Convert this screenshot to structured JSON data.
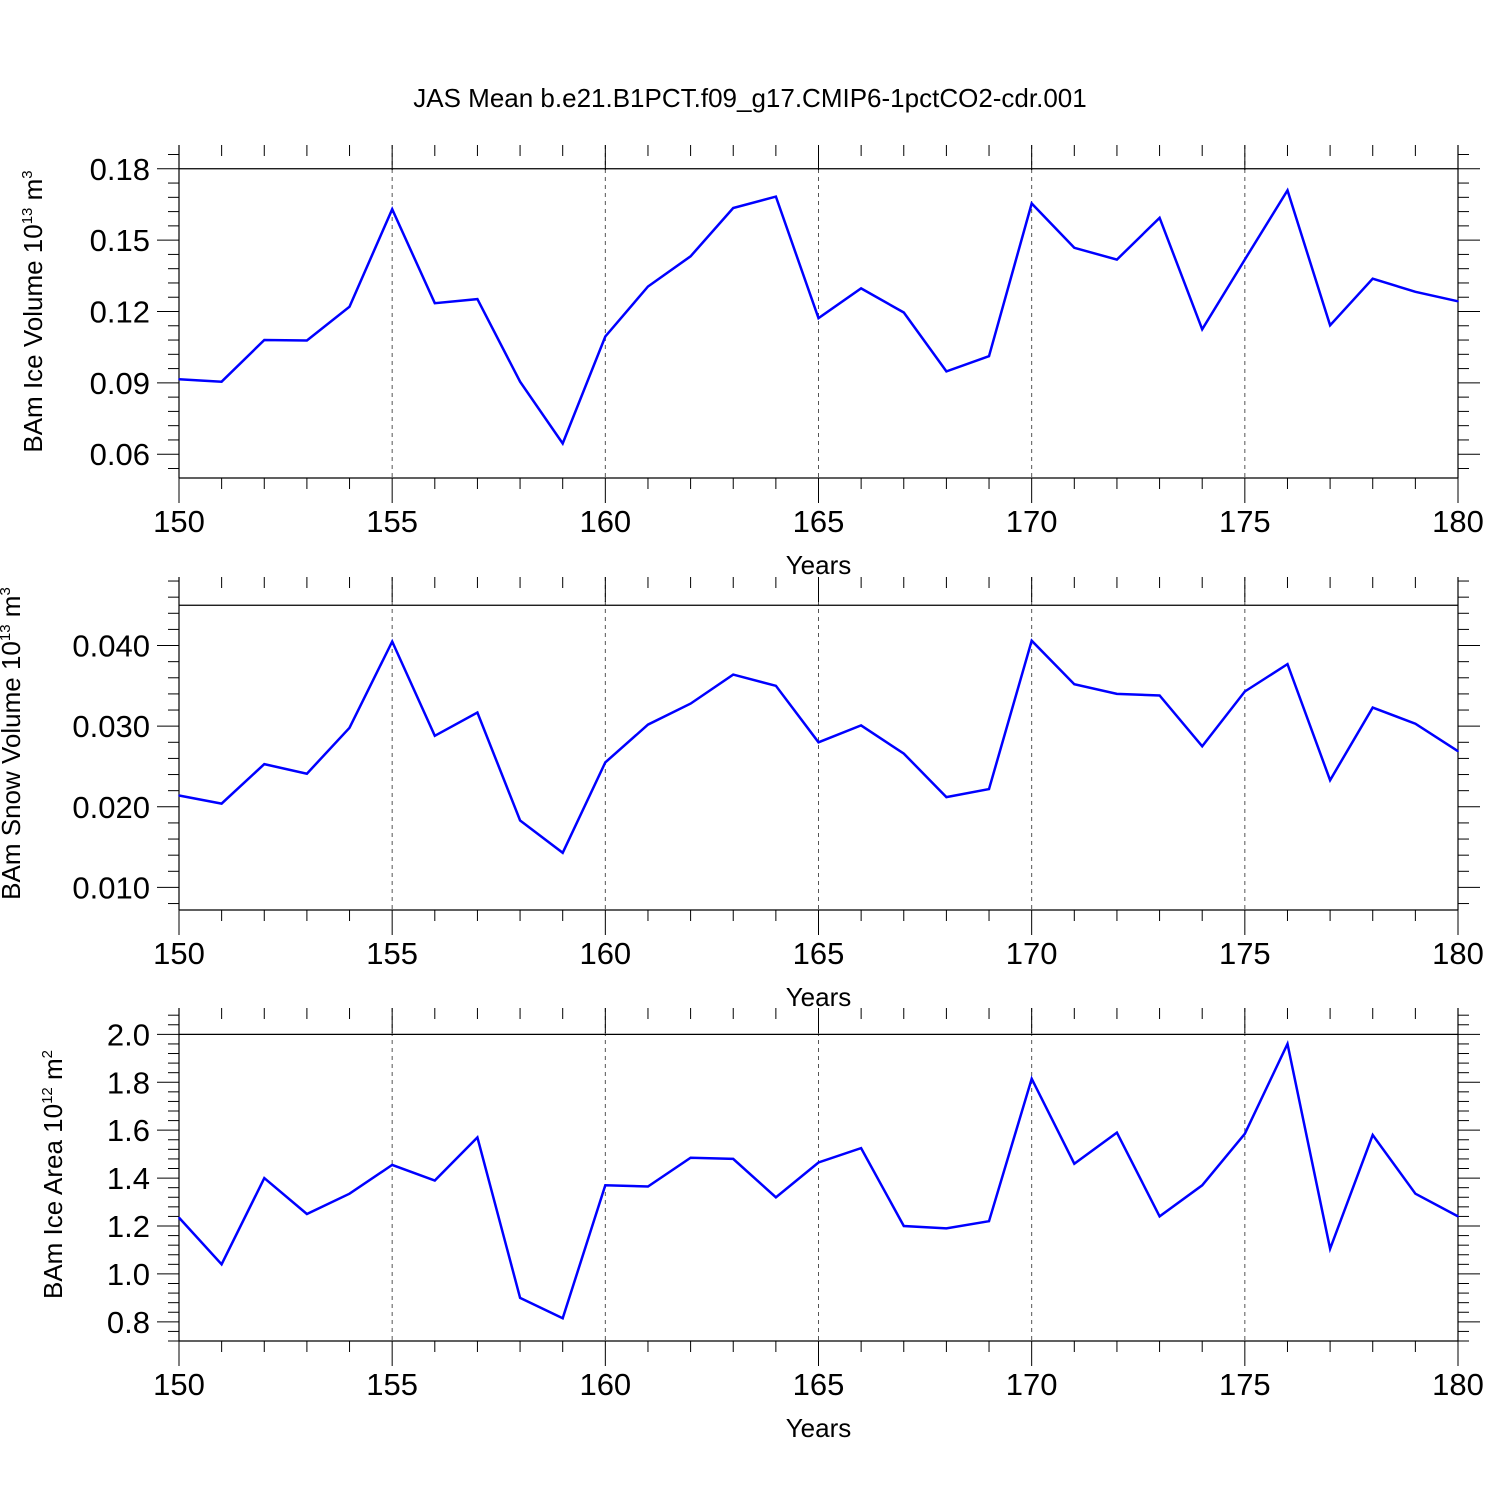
{
  "figure_title": "JAS Mean b.e21.B1PCT.f09_g17.CMIP6-1pctCO2-cdr.001",
  "line_color": "#0000ff",
  "chart_data": [
    {
      "type": "line",
      "name": "ice-volume",
      "ylabel": {
        "main": "BAm Ice Volume 10",
        "sup": "13",
        "unit": " m",
        "unit_sup": "3"
      },
      "xlabel": "Years",
      "xlim": [
        150,
        180
      ],
      "ylim": [
        0.05,
        0.19
      ],
      "xticks": [
        150,
        155,
        160,
        165,
        170,
        175,
        180
      ],
      "xtick_labels": [
        "150",
        "155",
        "160",
        "165",
        "170",
        "175",
        "180"
      ],
      "yticks": [
        0.06,
        0.09,
        0.12,
        0.15,
        0.18
      ],
      "ytick_labels": [
        "0.06",
        "0.09",
        "0.12",
        "0.15",
        "0.18"
      ],
      "ref_line": 0.18,
      "grid": "dashed vertical at major x ticks",
      "x": [
        150,
        151,
        152,
        153,
        154,
        155,
        156,
        157,
        158,
        159,
        160,
        161,
        162,
        163,
        164,
        165,
        166,
        167,
        168,
        169,
        170,
        171,
        172,
        173,
        174,
        175,
        176,
        177,
        178,
        179,
        180
      ],
      "y": [
        0.0915,
        0.0905,
        0.108,
        0.1078,
        0.122,
        0.163,
        0.1235,
        0.1252,
        0.0905,
        0.0645,
        0.1095,
        0.1305,
        0.1432,
        0.1635,
        0.1683,
        0.1172,
        0.1297,
        0.1196,
        0.0948,
        0.1012,
        0.1654,
        0.1468,
        0.1418,
        0.1594,
        0.1125,
        0.1418,
        0.1709,
        0.1142,
        0.1338,
        0.1283,
        0.1243
      ]
    },
    {
      "type": "line",
      "name": "snow-volume",
      "ylabel": {
        "main": "BAm Snow Volume 10",
        "sup": "13",
        "unit": " m",
        "unit_sup": "3"
      },
      "xlabel": "Years",
      "xlim": [
        150,
        180
      ],
      "ylim": [
        0.0072,
        0.0485
      ],
      "xticks": [
        150,
        155,
        160,
        165,
        170,
        175,
        180
      ],
      "xtick_labels": [
        "150",
        "155",
        "160",
        "165",
        "170",
        "175",
        "180"
      ],
      "yticks": [
        0.01,
        0.02,
        0.03,
        0.04
      ],
      "ytick_labels": [
        "0.010",
        "0.020",
        "0.030",
        "0.040"
      ],
      "ref_line": 0.045,
      "grid": "dashed vertical at major x ticks",
      "x": [
        150,
        151,
        152,
        153,
        154,
        155,
        156,
        157,
        158,
        159,
        160,
        161,
        162,
        163,
        164,
        165,
        166,
        167,
        168,
        169,
        170,
        171,
        172,
        173,
        174,
        175,
        176,
        177,
        178,
        179,
        180
      ],
      "y": [
        0.0214,
        0.0204,
        0.0253,
        0.0241,
        0.0298,
        0.0405,
        0.0288,
        0.0317,
        0.0183,
        0.0143,
        0.0255,
        0.0302,
        0.0328,
        0.0364,
        0.035,
        0.028,
        0.0301,
        0.0266,
        0.0212,
        0.0222,
        0.0406,
        0.0352,
        0.034,
        0.0338,
        0.0275,
        0.0343,
        0.0377,
        0.0233,
        0.0323,
        0.0303,
        0.0269
      ]
    },
    {
      "type": "line",
      "name": "ice-area",
      "ylabel": {
        "main": "BAm Ice Area 10",
        "sup": "12",
        "unit": " m",
        "unit_sup": "2"
      },
      "xlabel": "Years",
      "xlim": [
        150,
        180
      ],
      "ylim": [
        0.72,
        2.11
      ],
      "xticks": [
        150,
        155,
        160,
        165,
        170,
        175,
        180
      ],
      "xtick_labels": [
        "150",
        "155",
        "160",
        "165",
        "170",
        "175",
        "180"
      ],
      "yticks": [
        0.8,
        1.0,
        1.2,
        1.4,
        1.6,
        1.8,
        2.0
      ],
      "ytick_labels": [
        "0.8",
        "1.0",
        "1.2",
        "1.4",
        "1.6",
        "1.8",
        "2.0"
      ],
      "ref_line": 2.0,
      "grid": "dashed vertical at major x ticks",
      "x": [
        150,
        151,
        152,
        153,
        154,
        155,
        156,
        157,
        158,
        159,
        160,
        161,
        162,
        163,
        164,
        165,
        166,
        167,
        168,
        169,
        170,
        171,
        172,
        173,
        174,
        175,
        176,
        177,
        178,
        179,
        180
      ],
      "y": [
        1.235,
        1.04,
        1.4,
        1.25,
        1.335,
        1.455,
        1.39,
        1.57,
        0.9,
        0.815,
        1.37,
        1.365,
        1.485,
        1.48,
        1.32,
        1.465,
        1.525,
        1.2,
        1.19,
        1.22,
        1.815,
        1.46,
        1.59,
        1.24,
        1.37,
        1.585,
        1.96,
        1.105,
        1.58,
        1.335,
        1.24
      ]
    }
  ]
}
